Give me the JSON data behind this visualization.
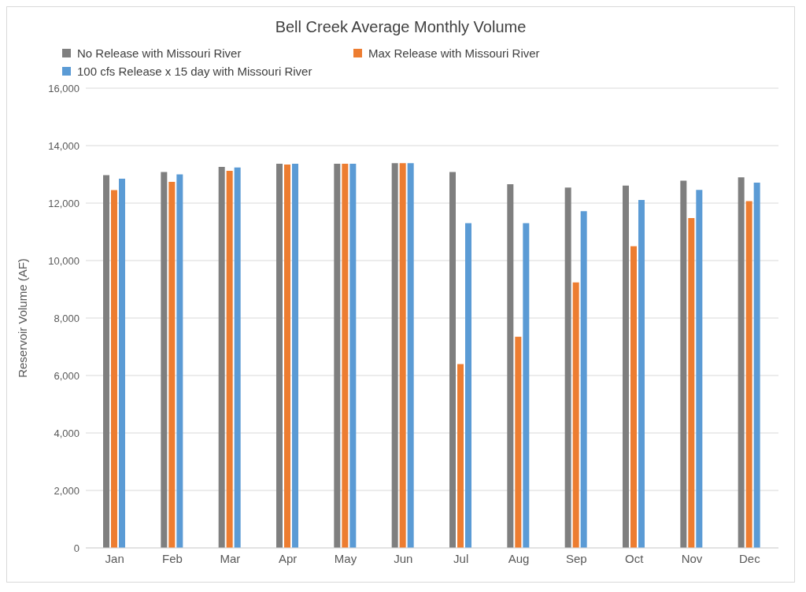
{
  "chart_data": {
    "type": "bar",
    "title": "Bell Creek Average Monthly Volume",
    "ylabel": "Reservoir Volume (AF)",
    "categories": [
      "Jan",
      "Feb",
      "Mar",
      "Apr",
      "May",
      "Jun",
      "Jul",
      "Aug",
      "Sep",
      "Oct",
      "Nov",
      "Dec"
    ],
    "series": [
      {
        "name": "No Release with Missouri River",
        "color": "#7f7f7f",
        "values": [
          12970,
          13080,
          13260,
          13370,
          13370,
          13390,
          13080,
          12660,
          12540,
          12610,
          12780,
          12900
        ]
      },
      {
        "name": "Max Release with Missouri River",
        "color": "#ed7d31",
        "values": [
          12450,
          12740,
          13120,
          13340,
          13370,
          13390,
          6400,
          7350,
          9240,
          10500,
          11480,
          12070
        ]
      },
      {
        "name": "100 cfs Release x 15 day with Missouri River",
        "color": "#5b9bd5",
        "values": [
          12850,
          13000,
          13240,
          13370,
          13370,
          13390,
          11300,
          11300,
          11720,
          12110,
          12460,
          12710
        ]
      }
    ],
    "ylim": [
      0,
      16000
    ],
    "yticks": [
      0,
      {
        "value": 2000,
        "label": "2,000"
      },
      {
        "value": 4000,
        "label": "4,000"
      },
      {
        "value": 6000,
        "label": "6,000"
      },
      {
        "value": 8000,
        "label": "8,000"
      },
      {
        "value": 10000,
        "label": "10,000"
      },
      {
        "value": 12000,
        "label": "12,000"
      },
      {
        "value": 14000,
        "label": "14,000"
      },
      {
        "value": 16000,
        "label": "16,000"
      }
    ],
    "grid": "y",
    "legend": "top left"
  }
}
